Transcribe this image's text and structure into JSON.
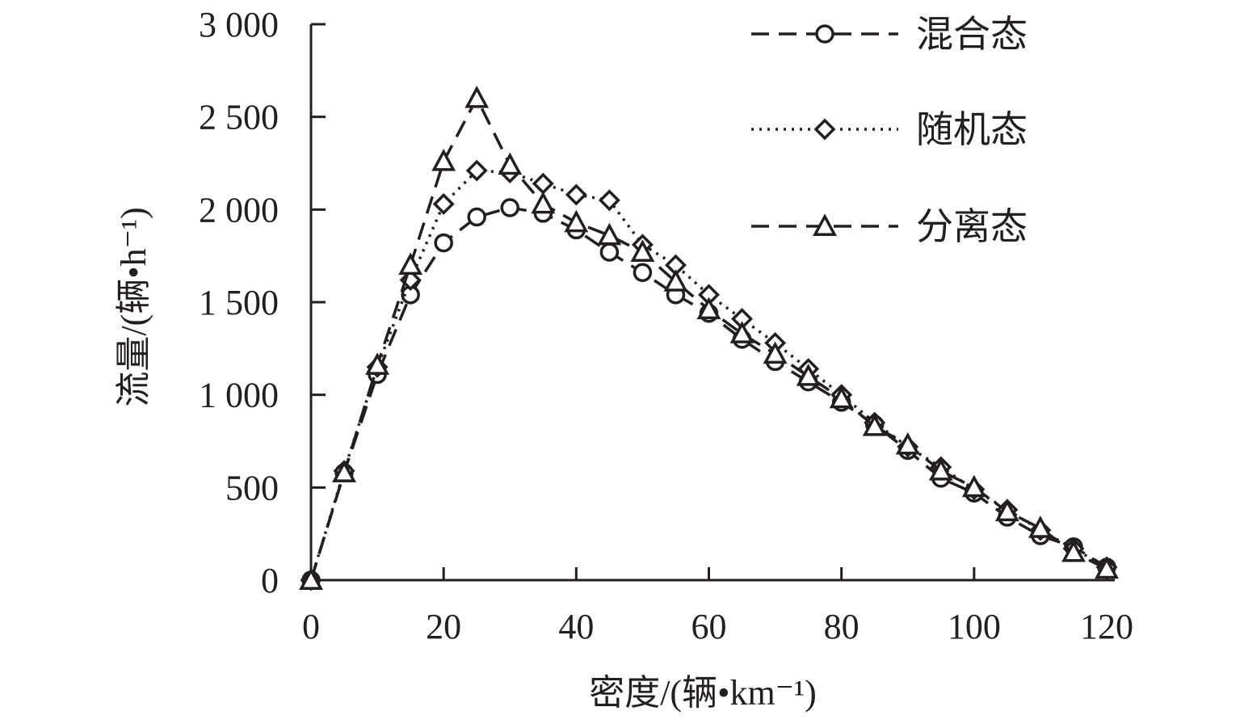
{
  "chart_data": {
    "type": "line",
    "x": [
      0,
      5,
      10,
      15,
      20,
      25,
      30,
      35,
      40,
      45,
      50,
      55,
      60,
      65,
      70,
      75,
      80,
      85,
      90,
      95,
      100,
      105,
      110,
      115,
      120
    ],
    "series": [
      {
        "name": "混合态",
        "marker": "circle",
        "dash": "dashed",
        "values": [
          0,
          580,
          1110,
          1540,
          1820,
          1960,
          2010,
          1980,
          1890,
          1770,
          1660,
          1540,
          1440,
          1300,
          1180,
          1070,
          960,
          840,
          700,
          550,
          470,
          340,
          240,
          180,
          70
        ]
      },
      {
        "name": "随机态",
        "marker": "diamond",
        "dash": "dotted",
        "values": [
          0,
          590,
          1150,
          1620,
          2030,
          2210,
          2200,
          2140,
          2080,
          2050,
          1810,
          1700,
          1540,
          1410,
          1280,
          1140,
          1000,
          850,
          720,
          610,
          490,
          380,
          270,
          170,
          70
        ]
      },
      {
        "name": "分离态",
        "marker": "triangle",
        "dash": "dashed",
        "values": [
          0,
          580,
          1160,
          1700,
          2260,
          2600,
          2240,
          2030,
          1930,
          1860,
          1770,
          1610,
          1460,
          1330,
          1220,
          1100,
          980,
          830,
          730,
          590,
          500,
          370,
          280,
          150,
          60
        ]
      }
    ],
    "xlabel": "密度/(辆•km⁻¹)",
    "ylabel": "流量/(辆•h⁻¹)",
    "xlim": [
      0,
      120
    ],
    "ylim": [
      0,
      3000
    ],
    "xticks": [
      "0",
      "20",
      "40",
      "60",
      "80",
      "100",
      "120"
    ],
    "yticks": [
      "0",
      "500",
      "1 000",
      "1 500",
      "2 000",
      "2 500",
      "3 000"
    ],
    "legend_position": "top-right",
    "grid": false,
    "colors": {
      "ink": "#231f20",
      "background": "#ffffff"
    }
  }
}
